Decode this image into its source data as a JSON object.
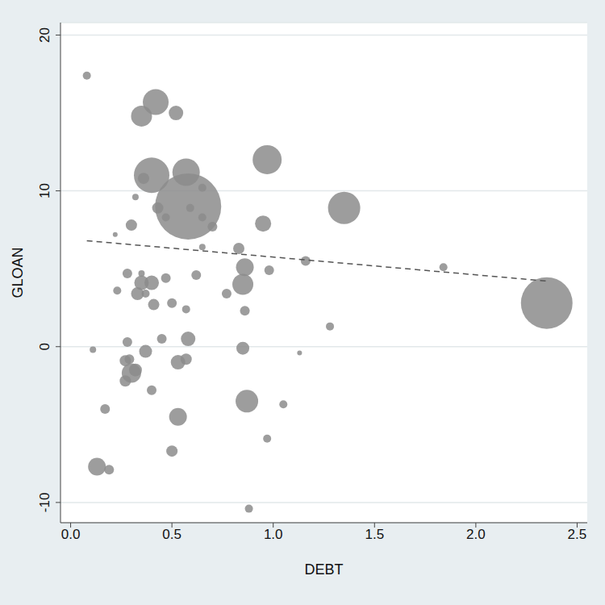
{
  "chart_data": {
    "type": "scatter",
    "x_label": "DEBT",
    "y_label": "GLOAN",
    "xlim": [
      -0.05,
      2.55
    ],
    "ylim": [
      -11.3,
      20.8
    ],
    "xticks": [
      {
        "value": 0,
        "label": "0.0"
      },
      0.5,
      {
        "value": 1,
        "label": "1.0"
      },
      1.5,
      {
        "value": 2,
        "label": "2.0"
      },
      2.5
    ],
    "yticks": [
      -10,
      0,
      10,
      20
    ],
    "grid": true,
    "series": [
      {
        "type": "scatter",
        "marker": "circle",
        "color": "#8c8c8c",
        "x": [
          0.08,
          0.42,
          0.35,
          0.52,
          0.4,
          0.57,
          0.36,
          0.32,
          0.58,
          0.97,
          1.35,
          0.65,
          0.43,
          0.47,
          0.3,
          0.22,
          0.65,
          0.7,
          0.59,
          0.95,
          0.65,
          0.83,
          0.86,
          1.16,
          1.84,
          0.98,
          0.28,
          0.35,
          0.35,
          0.4,
          0.47,
          0.62,
          0.23,
          0.33,
          0.37,
          0.85,
          0.77,
          0.41,
          0.5,
          0.57,
          0.86,
          2.35,
          1.28,
          0.45,
          0.58,
          0.28,
          0.11,
          0.85,
          1.13,
          0.37,
          0.27,
          0.29,
          0.57,
          0.53,
          0.32,
          0.3,
          0.27,
          0.4,
          0.87,
          1.05,
          0.17,
          0.53,
          0.97,
          0.5,
          0.13,
          0.19,
          0.88
        ],
        "values": [
          17.4,
          15.7,
          14.8,
          15.0,
          11.0,
          11.2,
          10.8,
          9.6,
          9.0,
          12.0,
          8.9,
          10.2,
          8.9,
          8.3,
          7.8,
          7.2,
          8.3,
          7.7,
          8.9,
          7.9,
          6.4,
          6.3,
          5.1,
          5.5,
          5.1,
          4.9,
          4.7,
          4.7,
          4.1,
          4.1,
          4.4,
          4.6,
          3.6,
          3.4,
          3.4,
          4.0,
          3.4,
          2.7,
          2.8,
          2.4,
          2.3,
          2.8,
          1.3,
          0.5,
          0.5,
          0.3,
          -0.2,
          -0.1,
          -0.4,
          -0.3,
          -0.9,
          -0.8,
          -0.8,
          -1.0,
          -1.5,
          -1.7,
          -2.2,
          -2.8,
          -3.5,
          -3.7,
          -4.0,
          -4.5,
          -5.9,
          -6.7,
          -7.7,
          -7.9,
          -10.4
        ],
        "size": [
          25,
          256,
          169,
          81,
          484,
          289,
          49,
          16,
          1681,
          324,
          400,
          25,
          49,
          25,
          49,
          9,
          25,
          36,
          25,
          100,
          16,
          49,
          121,
          36,
          25,
          36,
          36,
          16,
          81,
          81,
          36,
          36,
          25,
          64,
          25,
          169,
          36,
          49,
          36,
          25,
          36,
          1024,
          25,
          36,
          81,
          36,
          16,
          64,
          9,
          64,
          49,
          36,
          49,
          81,
          64,
          144,
          49,
          36,
          196,
          25,
          36,
          121,
          25,
          49,
          121,
          36,
          25
        ]
      },
      {
        "type": "line",
        "line_style": "dashed",
        "color": "#555555",
        "x": [
          0.08,
          2.36
        ],
        "values": [
          6.8,
          4.2
        ]
      }
    ]
  }
}
